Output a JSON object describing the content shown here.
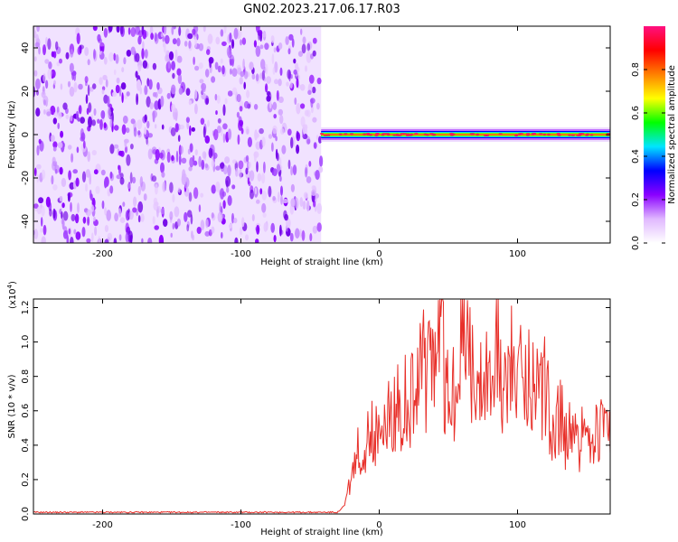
{
  "title": "GN02.2023.217.06.17.R03",
  "chart_data": [
    {
      "type": "heatmap",
      "xlabel": "Height of straight line (km)",
      "ylabel": "Frequency (Hz)",
      "xlim": [
        -250,
        167
      ],
      "ylim": [
        -50,
        50
      ],
      "xticks": [
        -200,
        -100,
        0,
        100
      ],
      "yticks": [
        -40,
        -20,
        0,
        20,
        40
      ],
      "noise_region_x": [
        -250,
        -42
      ],
      "signal_band": {
        "x": [
          -42,
          167
        ],
        "frequency_hz": 0
      },
      "colorbar": {
        "label": "Normalized spectral amplitude",
        "range": [
          0,
          1
        ],
        "ticks": [
          "0.0",
          "0.2",
          "0.4",
          "0.6",
          "0.8"
        ],
        "colors": [
          "#ffffff",
          "#e0b8ff",
          "#8a00ff",
          "#0000ff",
          "#00e5ff",
          "#00ff00",
          "#ffff00",
          "#ff8000",
          "#ff0000",
          "#ff1080"
        ]
      }
    },
    {
      "type": "line",
      "xlabel": "Height of straight line (km)",
      "ylabel": "SNR (10 * v/v)",
      "y_multiplier": "(x10",
      "y_multiplier_exp": "4",
      "y_multiplier_close": ")",
      "xlim": [
        -250,
        167
      ],
      "ylim": [
        0,
        1.25
      ],
      "xticks": [
        -200,
        -100,
        0,
        100
      ],
      "yticks": [
        "0.0",
        "0.2",
        "0.4",
        "0.6",
        "0.8",
        "1.0",
        "1.2"
      ],
      "line_color": "#e8302a",
      "series": [
        {
          "x": [
            -250,
            -200,
            -100,
            -30,
            -25,
            -22,
            -18,
            -15,
            -10,
            -5,
            0,
            5,
            10,
            15,
            20,
            25,
            30,
            35,
            40,
            45,
            50,
            55,
            60,
            65,
            70,
            75,
            80,
            85,
            90,
            95,
            100,
            105,
            110,
            115,
            120,
            125,
            130,
            135,
            140,
            145,
            150,
            155,
            160,
            167
          ],
          "y": [
            0.01,
            0.01,
            0.01,
            0.01,
            0.05,
            0.2,
            0.3,
            0.45,
            0.5,
            0.6,
            0.5,
            0.6,
            0.7,
            0.75,
            0.8,
            0.85,
            0.9,
            1.05,
            0.9,
            1.25,
            0.8,
            0.95,
            1.25,
            1.05,
            0.85,
            1.05,
            0.8,
            1.15,
            0.75,
            1.05,
            1.05,
            0.85,
            0.95,
            0.75,
            0.85,
            0.65,
            0.7,
            0.55,
            0.55,
            0.45,
            0.7,
            0.5,
            0.6,
            0.55
          ]
        }
      ]
    }
  ]
}
